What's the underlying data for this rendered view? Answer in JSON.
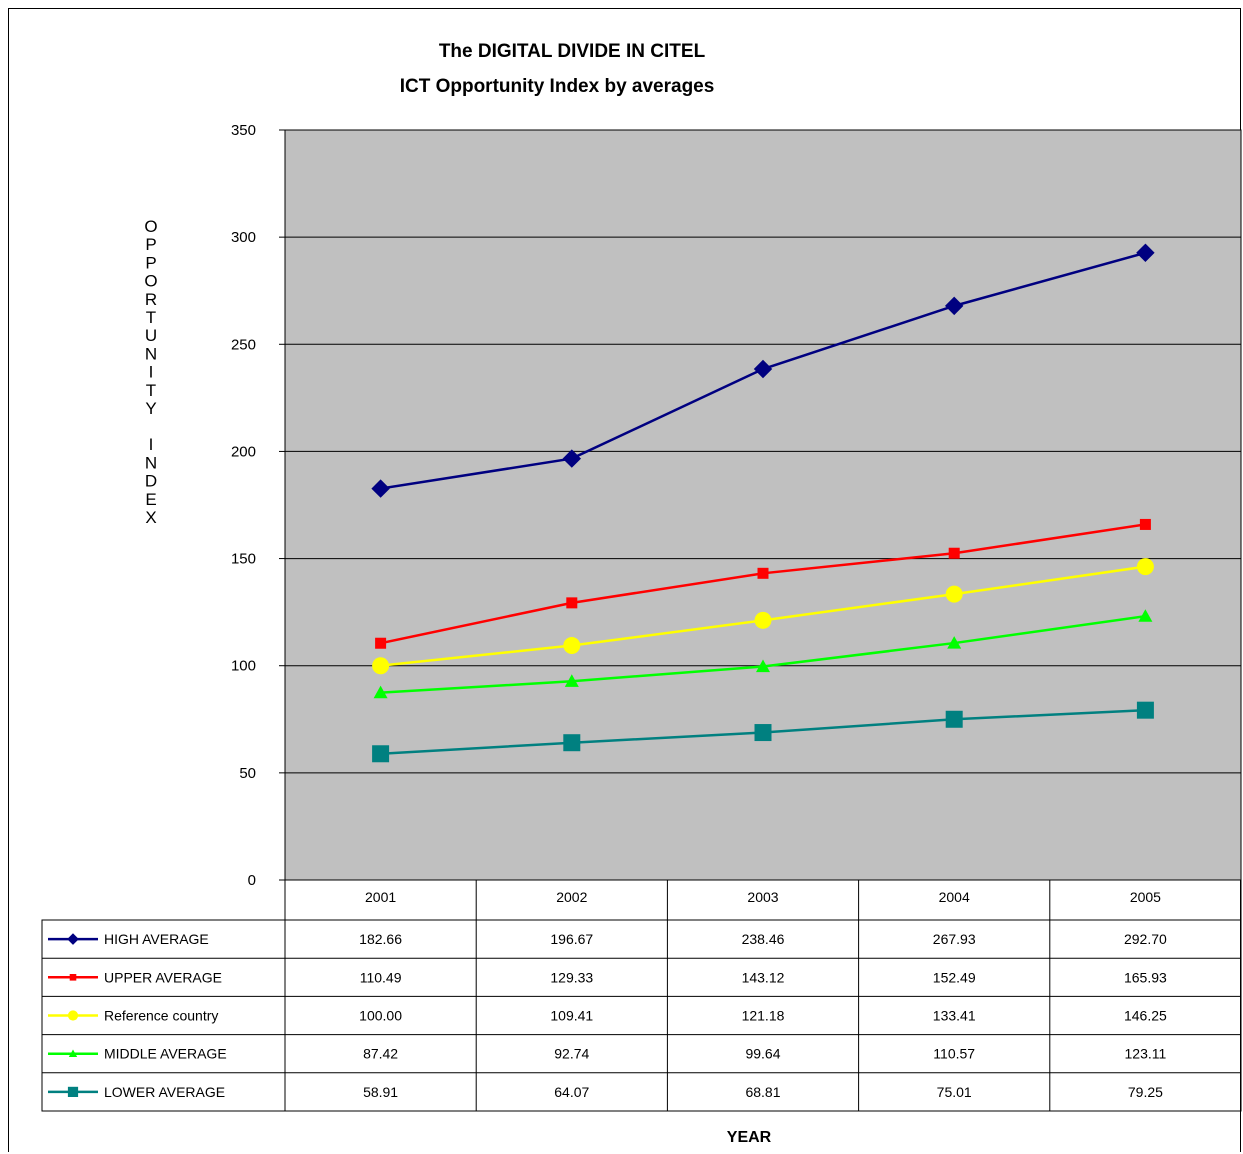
{
  "chart_data": {
    "type": "line",
    "title": "The DIGITAL DIVIDE IN CITEL",
    "subtitle": "ICT Opportunity Index by averages",
    "xlabel": "YEAR",
    "ylabel": "OPPORTUNITY INDEX",
    "ylim": [
      0,
      350
    ],
    "yticks": [
      0,
      50,
      100,
      150,
      200,
      250,
      300,
      350
    ],
    "grid": true,
    "categories": [
      "2001",
      "2002",
      "2003",
      "2004",
      "2005"
    ],
    "series": [
      {
        "name": "HIGH AVERAGE",
        "color": "#000080",
        "marker": "diamond",
        "values": [
          182.66,
          196.67,
          238.46,
          267.93,
          292.7
        ],
        "labels": [
          "182.66",
          "196.67",
          "238.46",
          "267.93",
          "292.70"
        ]
      },
      {
        "name": "UPPER AVERAGE",
        "color": "#ff0000",
        "marker": "square-small",
        "values": [
          110.49,
          129.33,
          143.12,
          152.49,
          165.93
        ],
        "labels": [
          "110.49",
          "129.33",
          "143.12",
          "152.49",
          "165.93"
        ]
      },
      {
        "name": "Reference country",
        "color": "#ffff00",
        "marker": "circle",
        "values": [
          100.0,
          109.41,
          121.18,
          133.41,
          146.25
        ],
        "labels": [
          "100.00",
          "109.41",
          "121.18",
          "133.41",
          "146.25"
        ]
      },
      {
        "name": "MIDDLE AVERAGE",
        "color": "#00ff00",
        "marker": "triangle",
        "values": [
          87.42,
          92.74,
          99.64,
          110.57,
          123.11
        ],
        "labels": [
          "87.42",
          "92.74",
          "99.64",
          "110.57",
          "123.11"
        ]
      },
      {
        "name": "LOWER AVERAGE",
        "color": "#008080",
        "marker": "square",
        "values": [
          58.91,
          64.07,
          68.81,
          75.01,
          79.25
        ],
        "labels": [
          "58.91",
          "64.07",
          "68.81",
          "75.01",
          "79.25"
        ]
      }
    ],
    "plot_background": "#c0c0c0"
  }
}
